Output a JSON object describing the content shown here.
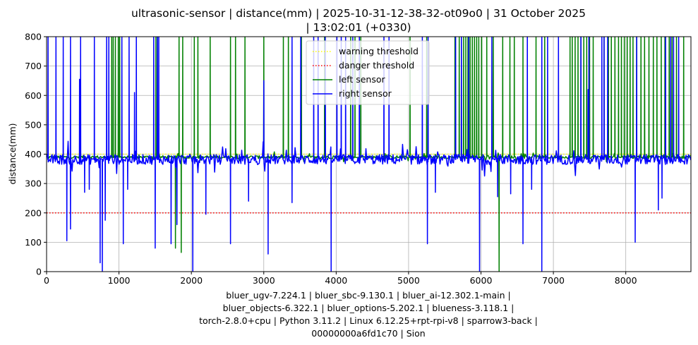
{
  "chart_data": {
    "type": "line",
    "title": [
      "ultrasonic-sensor | distance(mm) | 2025-10-31-12-38-32-ot09o0 | 31 October 2025",
      "| 13:02:01 (+0330)"
    ],
    "ylabel": "distance(mm)",
    "xlim": [
      0,
      8900
    ],
    "ylim": [
      0,
      800
    ],
    "xticks": [
      0,
      1000,
      2000,
      3000,
      4000,
      5000,
      6000,
      7000,
      8000
    ],
    "yticks": [
      0,
      100,
      200,
      300,
      400,
      500,
      600,
      700,
      800
    ],
    "grid": true,
    "legend_position": "top-center",
    "series": [
      {
        "name": "warning threshold",
        "color": "#ffff00",
        "style": "dotted",
        "y": 400
      },
      {
        "name": "danger threshold",
        "color": "#ff0000",
        "style": "dotted",
        "y": 200
      },
      {
        "name": "left sensor",
        "color": "#008000",
        "style": "solid",
        "baseline": 390,
        "spikes_high": [
          900,
          920,
          950,
          990,
          1010,
          1510,
          1530,
          1830,
          1880,
          2040,
          2090,
          2260,
          2540,
          2610,
          2740,
          3000,
          3270,
          3340,
          3520,
          3840,
          4200,
          4260,
          4340,
          5020,
          5250,
          5640,
          5700,
          5730,
          5760,
          5790,
          5820,
          5850,
          5880,
          5910,
          5940,
          5970,
          6010,
          6080,
          6170,
          6300,
          6400,
          6460,
          6580,
          6760,
          6880,
          7230,
          7260,
          7300,
          7340,
          7380,
          7420,
          7460,
          7500,
          7550,
          7700,
          7760,
          7800,
          7850,
          7900,
          7940,
          7980,
          8020,
          8060,
          8100,
          8150,
          8210,
          8260,
          8320,
          8380,
          8430,
          8490,
          8540,
          8600,
          8640,
          8700,
          8800
        ],
        "spikes_low": [
          {
            "x": 1780,
            "y": 80
          },
          {
            "x": 1860,
            "y": 65
          },
          {
            "x": 6250,
            "y": 0
          }
        ]
      },
      {
        "name": "right sensor",
        "color": "#0000ff",
        "style": "solid",
        "baseline": 382,
        "spikes_high": [
          20,
          130,
          230,
          330,
          470,
          660,
          830,
          860,
          1040,
          1140,
          1240,
          1480,
          1530,
          1550,
          3390,
          3510,
          3690,
          3750,
          3850,
          4010,
          4070,
          4130,
          4230,
          4320,
          4660,
          4730,
          5190,
          5270,
          5650,
          5730,
          5830,
          6150,
          6640,
          6840,
          6920,
          7070,
          7380,
          7490,
          7670,
          7700,
          7750,
          8150,
          8550,
          8620,
          8660,
          8730
        ],
        "spikes_to_value": [
          {
            "x": 455,
            "y": 655
          },
          {
            "x": 1215,
            "y": 610
          },
          {
            "x": 3000,
            "y": 650
          },
          {
            "x": 7480,
            "y": 620
          }
        ],
        "spikes_low": [
          {
            "x": 280,
            "y": 105
          },
          {
            "x": 330,
            "y": 145
          },
          {
            "x": 525,
            "y": 270
          },
          {
            "x": 590,
            "y": 280
          },
          {
            "x": 740,
            "y": 30
          },
          {
            "x": 770,
            "y": 0
          },
          {
            "x": 810,
            "y": 175
          },
          {
            "x": 1060,
            "y": 95
          },
          {
            "x": 1120,
            "y": 280
          },
          {
            "x": 1500,
            "y": 80
          },
          {
            "x": 1720,
            "y": 95
          },
          {
            "x": 1800,
            "y": 160
          },
          {
            "x": 2020,
            "y": 0
          },
          {
            "x": 2200,
            "y": 195
          },
          {
            "x": 2540,
            "y": 95
          },
          {
            "x": 2790,
            "y": 240
          },
          {
            "x": 3060,
            "y": 60
          },
          {
            "x": 3390,
            "y": 235
          },
          {
            "x": 3930,
            "y": 0
          },
          {
            "x": 5260,
            "y": 95
          },
          {
            "x": 5370,
            "y": 270
          },
          {
            "x": 5980,
            "y": 0
          },
          {
            "x": 6230,
            "y": 255
          },
          {
            "x": 6410,
            "y": 265
          },
          {
            "x": 6580,
            "y": 95
          },
          {
            "x": 6700,
            "y": 280
          },
          {
            "x": 6840,
            "y": 0
          },
          {
            "x": 8130,
            "y": 100
          },
          {
            "x": 8450,
            "y": 210
          },
          {
            "x": 8500,
            "y": 250
          }
        ]
      }
    ]
  },
  "footer": [
    "bluer_ugv-7.224.1 | bluer_sbc-9.130.1 | bluer_ai-12.302.1-main |",
    "bluer_objects-6.322.1 | bluer_options-5.202.1 | blueness-3.118.1 |",
    "torch-2.8.0+cpu | Python 3.11.2 | Linux 6.12.25+rpt-rpi-v8 | sparrow3-back |",
    "00000000a6fd1c70 | Sion"
  ]
}
